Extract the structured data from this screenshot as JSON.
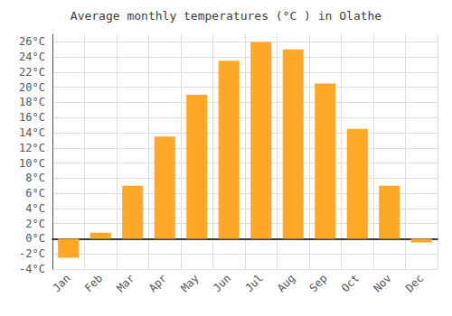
{
  "chart_data": {
    "type": "bar",
    "title": "Average monthly temperatures (°C ) in Olathe",
    "categories": [
      "Jan",
      "Feb",
      "Mar",
      "Apr",
      "May",
      "Jun",
      "Jul",
      "Aug",
      "Sep",
      "Oct",
      "Nov",
      "Dec"
    ],
    "values": [
      -2.5,
      0.8,
      7.0,
      13.5,
      19.0,
      23.5,
      26.0,
      25.0,
      20.5,
      14.5,
      7.0,
      -0.5
    ],
    "color": "#FFA726",
    "ylim": [
      -4,
      27
    ],
    "yticks": [
      {
        "value": -4,
        "label": "-4°C"
      },
      {
        "value": -2,
        "label": "-2°C"
      },
      {
        "value": 0,
        "label": "0°C"
      },
      {
        "value": 2,
        "label": "2°C"
      },
      {
        "value": 4,
        "label": "4°C"
      },
      {
        "value": 6,
        "label": "6°C"
      },
      {
        "value": 8,
        "label": "8°C"
      },
      {
        "value": 10,
        "label": "10°C"
      },
      {
        "value": 12,
        "label": "12°C"
      },
      {
        "value": 14,
        "label": "14°C"
      },
      {
        "value": 16,
        "label": "16°C"
      },
      {
        "value": 18,
        "label": "18°C"
      },
      {
        "value": 20,
        "label": "20°C"
      },
      {
        "value": 22,
        "label": "22°C"
      },
      {
        "value": 24,
        "label": "24°C"
      },
      {
        "value": 26,
        "label": "26°C"
      }
    ],
    "grid": true
  }
}
